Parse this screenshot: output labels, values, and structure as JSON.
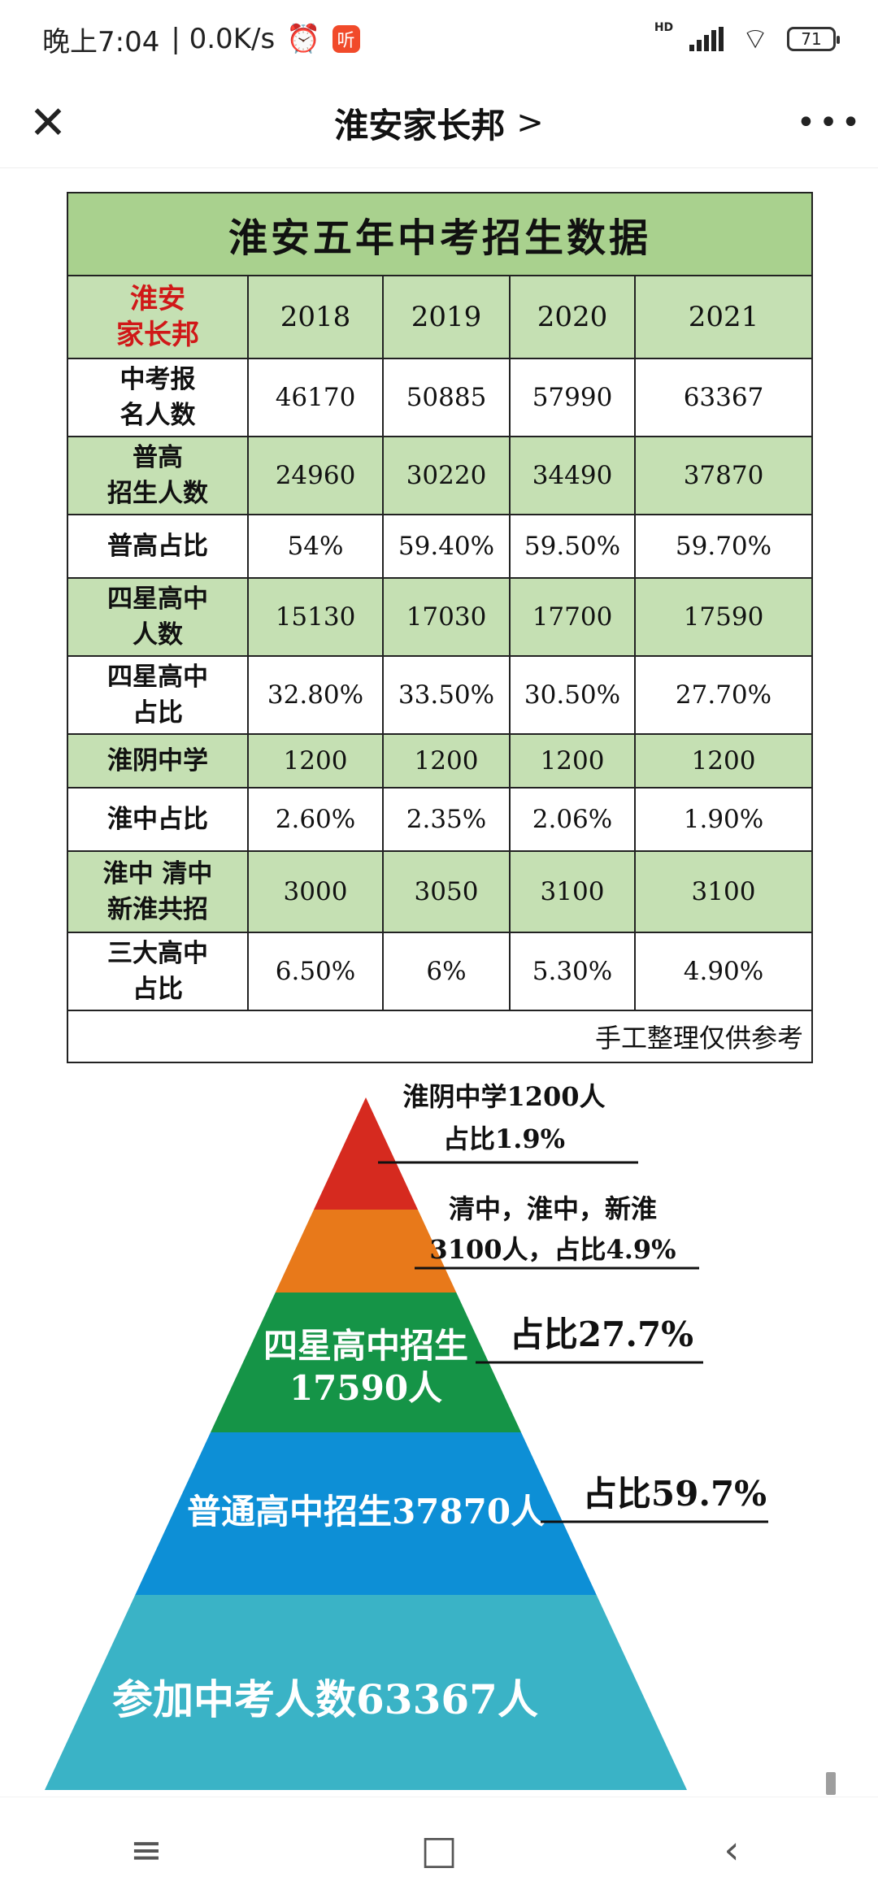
{
  "status_bar": {
    "time": "晚上7:04",
    "network_speed": "| 0.0K/s",
    "app_badge": "听",
    "hd_label": "HD",
    "battery": "71"
  },
  "title_bar": {
    "title": "淮安家长邦",
    "chevron": ">"
  },
  "table": {
    "caption": "淮安五年中考招生数据",
    "brand_line1": "淮安",
    "brand_line2": "家长邦",
    "years": [
      "2018",
      "2019",
      "2020",
      "2021"
    ],
    "rows": [
      {
        "label_lines": [
          "中考报",
          "名人数"
        ],
        "values": [
          "46170",
          "50885",
          "57990",
          "63367"
        ],
        "shade": "white"
      },
      {
        "label_lines": [
          "普高",
          "招生人数"
        ],
        "values": [
          "24960",
          "30220",
          "34490",
          "37870"
        ],
        "shade": "green"
      },
      {
        "label_lines": [
          "普高占比"
        ],
        "values": [
          "54%",
          "59.40%",
          "59.50%",
          "59.70%"
        ],
        "shade": "white"
      },
      {
        "label_lines": [
          "四星高中",
          "人数"
        ],
        "values": [
          "15130",
          "17030",
          "17700",
          "17590"
        ],
        "shade": "green"
      },
      {
        "label_lines": [
          "四星高中",
          "占比"
        ],
        "values": [
          "32.80%",
          "33.50%",
          "30.50%",
          "27.70%"
        ],
        "shade": "white"
      },
      {
        "label_lines": [
          "淮阴中学"
        ],
        "values": [
          "1200",
          "1200",
          "1200",
          "1200"
        ],
        "shade": "green"
      },
      {
        "label_lines": [
          "淮中占比"
        ],
        "values": [
          "2.60%",
          "2.35%",
          "2.06%",
          "1.90%"
        ],
        "shade": "white"
      },
      {
        "label_lines": [
          "淮中 清中",
          "新淮共招"
        ],
        "values": [
          "3000",
          "3050",
          "3100",
          "3100"
        ],
        "shade": "green"
      },
      {
        "label_lines": [
          "三大高中",
          "占比"
        ],
        "values": [
          "6.50%",
          "6%",
          "5.30%",
          "4.90%"
        ],
        "shade": "white"
      }
    ],
    "footer": "手工整理仅供参考"
  },
  "pyramid": {
    "colors": [
      "#d62a1f",
      "#e8791a",
      "#159447",
      "#0d8fd6",
      "#3ab3c6"
    ],
    "tier_labels": [
      [],
      [],
      [
        "四星高中招生",
        "17590人"
      ],
      [
        "普通高中招生37870人"
      ],
      [
        "参加中考人数63367人"
      ]
    ],
    "callouts": [
      [
        "淮阴中学1200人",
        "占比1.9%"
      ],
      [
        "清中，淮中，新淮",
        "3100人，占比4.9%"
      ],
      [
        "占比27.7%"
      ],
      [
        "占比59.7%"
      ]
    ]
  },
  "nav_bar": {
    "menu_icon": "≡",
    "home_icon": "□",
    "back_icon": "‹"
  }
}
